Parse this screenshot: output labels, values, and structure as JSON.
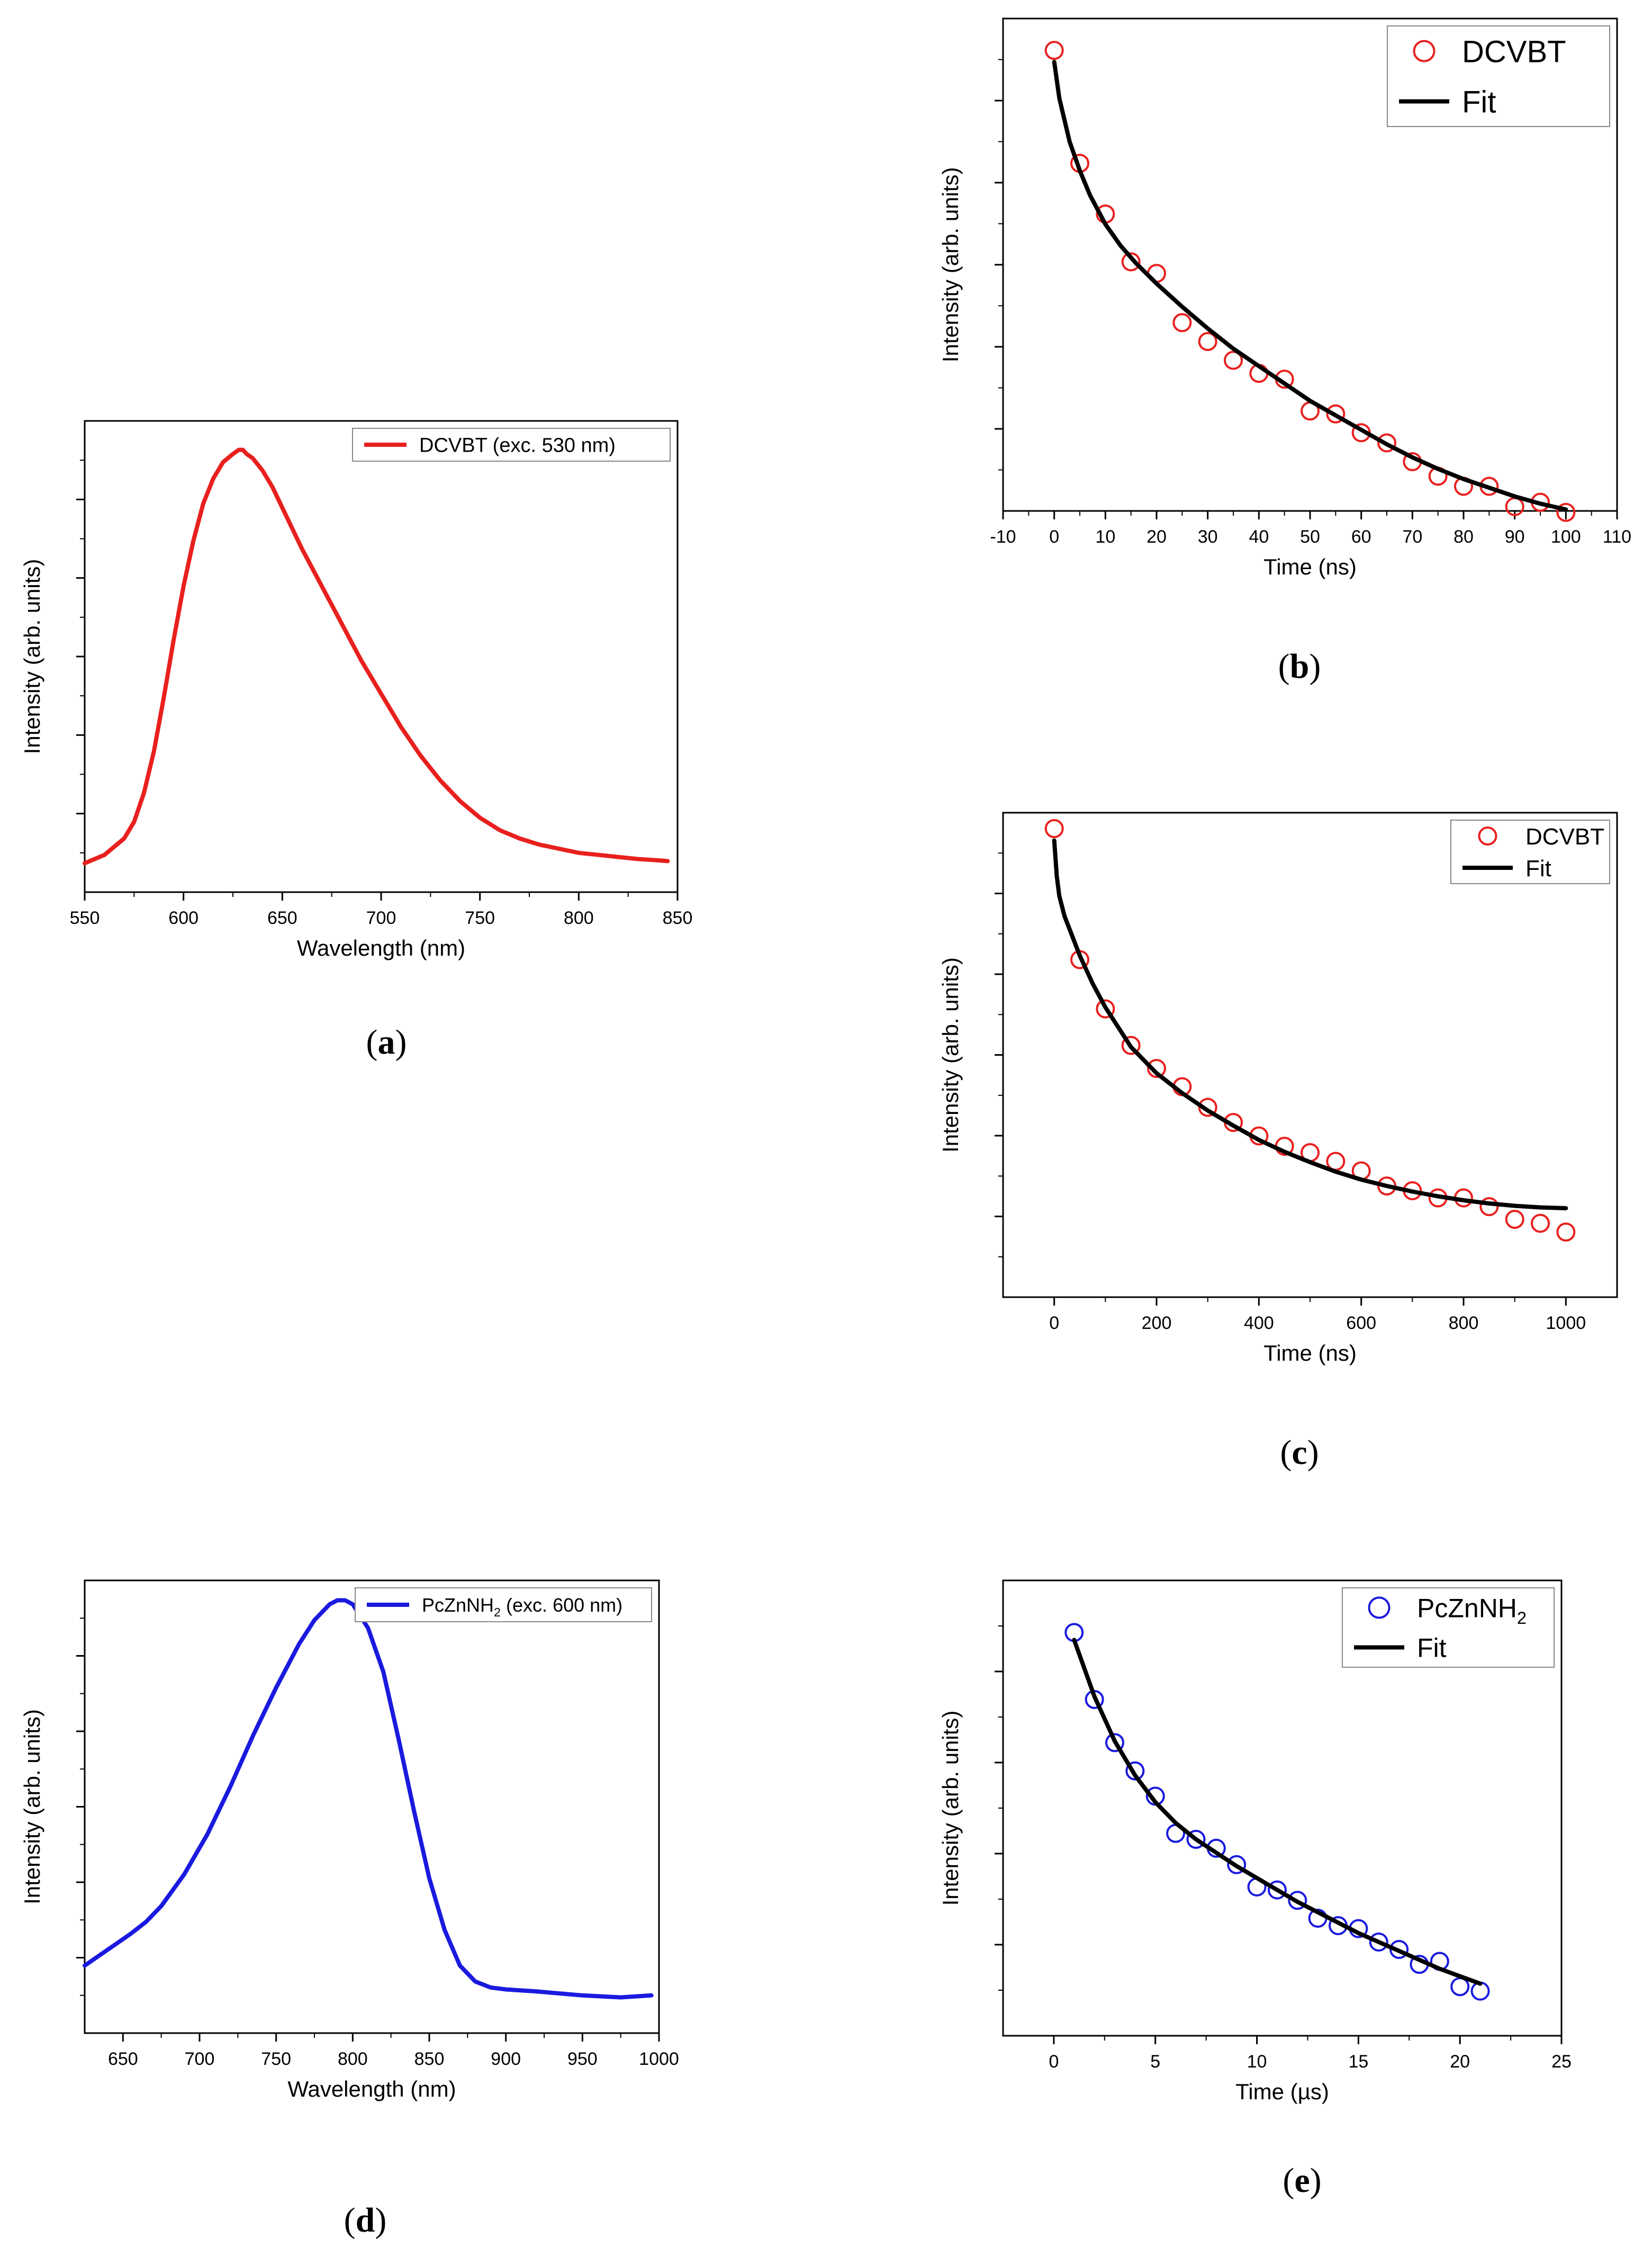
{
  "colors": {
    "red": "#e8201e",
    "blue": "#1a1adf",
    "black": "#000000"
  },
  "chart_data": [
    {
      "id": "a",
      "type": "line",
      "caption_letter": "a",
      "xlabel": "Wavelength (nm)",
      "ylabel": "Intensity (arb. units)",
      "xlim": [
        550,
        850
      ],
      "ylim": [
        -0.07,
        1.07
      ],
      "xticks": [
        550,
        600,
        650,
        700,
        750,
        800,
        850
      ],
      "xtick_labels": [
        "550",
        "600",
        "650",
        "700",
        "750",
        "800",
        "850"
      ],
      "legend": [
        {
          "label": "DCVBT (exc. 530 nm)",
          "kind": "line",
          "color": "#e8201e"
        }
      ],
      "legend_position": "top-right",
      "series": [
        {
          "name": "DCVBT (exc. 530 nm)",
          "style": "line",
          "color": "#e8201e",
          "x": [
            550,
            560,
            570,
            575,
            580,
            585,
            590,
            595,
            600,
            605,
            610,
            615,
            620,
            625,
            628,
            630,
            632,
            635,
            640,
            645,
            650,
            660,
            670,
            680,
            690,
            700,
            710,
            720,
            730,
            740,
            750,
            760,
            770,
            780,
            790,
            800,
            810,
            820,
            830,
            840,
            845
          ],
          "y": [
            0.0,
            0.02,
            0.06,
            0.1,
            0.17,
            0.27,
            0.4,
            0.54,
            0.67,
            0.78,
            0.87,
            0.93,
            0.97,
            0.99,
            1.0,
            1.0,
            0.99,
            0.98,
            0.95,
            0.91,
            0.86,
            0.76,
            0.67,
            0.58,
            0.49,
            0.41,
            0.33,
            0.26,
            0.2,
            0.15,
            0.11,
            0.08,
            0.06,
            0.045,
            0.035,
            0.025,
            0.02,
            0.015,
            0.01,
            0.007,
            0.005
          ]
        }
      ]
    },
    {
      "id": "b",
      "type": "scatter",
      "caption_letter": "b",
      "xlabel": "Time (ns)",
      "ylabel": "Intensity (arb. units)",
      "xlim": [
        -10,
        110
      ],
      "ylim": [
        0.8,
        4.2
      ],
      "xticks": [
        -10,
        0,
        10,
        20,
        30,
        40,
        50,
        60,
        70,
        80,
        90,
        100,
        110
      ],
      "xtick_labels": [
        "-10",
        "0",
        "10",
        "20",
        "30",
        "40",
        "50",
        "60",
        "70",
        "80",
        "90",
        "100",
        "110"
      ],
      "legend": [
        {
          "label": "DCVBT",
          "kind": "marker",
          "color": "#e8201e"
        },
        {
          "label": "Fit",
          "kind": "line",
          "color": "#000000"
        }
      ],
      "legend_position": "top-right",
      "series": [
        {
          "name": "DCVBT",
          "style": "markers",
          "color": "#e8201e",
          "x": [
            0,
            5,
            10,
            15,
            20,
            25,
            30,
            35,
            40,
            45,
            50,
            55,
            60,
            65,
            70,
            75,
            80,
            85,
            90,
            95,
            100
          ],
          "y": [
            3.98,
            3.2,
            2.85,
            2.52,
            2.44,
            2.1,
            1.97,
            1.84,
            1.75,
            1.71,
            1.49,
            1.47,
            1.34,
            1.27,
            1.14,
            1.04,
            0.97,
            0.97,
            0.83,
            0.86,
            0.79
          ]
        },
        {
          "name": "Fit",
          "style": "line",
          "color": "#000000",
          "x": [
            0,
            1,
            3,
            5,
            7,
            10,
            13,
            16,
            20,
            25,
            30,
            35,
            40,
            45,
            50,
            55,
            60,
            65,
            70,
            75,
            80,
            85,
            90,
            95,
            100
          ],
          "y": [
            3.9,
            3.65,
            3.35,
            3.15,
            2.98,
            2.78,
            2.63,
            2.51,
            2.37,
            2.21,
            2.06,
            1.92,
            1.8,
            1.68,
            1.56,
            1.46,
            1.36,
            1.26,
            1.17,
            1.09,
            1.02,
            0.96,
            0.9,
            0.85,
            0.81
          ]
        }
      ]
    },
    {
      "id": "c",
      "type": "scatter",
      "caption_letter": "c",
      "xlabel": "Time (ns)",
      "ylabel": "Intensity (arb. units)",
      "xlim": [
        -100,
        1100
      ],
      "ylim": [
        -0.1,
        6.0
      ],
      "xticks": [
        0,
        200,
        400,
        600,
        800,
        1000
      ],
      "xtick_labels": [
        "0",
        "200",
        "400",
        "600",
        "800",
        "1000"
      ],
      "legend": [
        {
          "label": "DCVBT",
          "kind": "marker",
          "color": "#e8201e"
        },
        {
          "label": "Fit",
          "kind": "line",
          "color": "#000000"
        }
      ],
      "legend_position": "top-right",
      "series": [
        {
          "name": "DCVBT",
          "style": "markers",
          "color": "#e8201e",
          "x": [
            0,
            50,
            100,
            150,
            200,
            250,
            300,
            350,
            400,
            450,
            500,
            550,
            600,
            650,
            700,
            750,
            800,
            850,
            900,
            950,
            1000
          ],
          "y": [
            5.8,
            4.15,
            3.53,
            3.07,
            2.78,
            2.55,
            2.29,
            2.1,
            1.93,
            1.8,
            1.72,
            1.61,
            1.49,
            1.3,
            1.24,
            1.15,
            1.15,
            1.04,
            0.88,
            0.83,
            0.72
          ]
        },
        {
          "name": "Fit",
          "style": "line",
          "color": "#000000",
          "x": [
            0,
            5,
            10,
            20,
            35,
            50,
            75,
            100,
            150,
            200,
            250,
            300,
            350,
            400,
            450,
            500,
            550,
            600,
            650,
            700,
            750,
            800,
            850,
            900,
            950,
            1000
          ],
          "y": [
            5.65,
            5.2,
            4.95,
            4.7,
            4.45,
            4.2,
            3.85,
            3.55,
            3.05,
            2.72,
            2.47,
            2.25,
            2.06,
            1.88,
            1.73,
            1.6,
            1.48,
            1.38,
            1.3,
            1.23,
            1.17,
            1.12,
            1.08,
            1.05,
            1.03,
            1.02
          ]
        }
      ]
    },
    {
      "id": "d",
      "type": "line",
      "caption_letter": "d",
      "xlabel": "Wavelength (nm)",
      "ylabel": "Intensity (arb. units)",
      "xlim": [
        625,
        1000
      ],
      "ylim": [
        -0.09,
        1.05
      ],
      "xticks": [
        650,
        700,
        750,
        800,
        850,
        900,
        950,
        1000
      ],
      "xtick_labels": [
        "650",
        "700",
        "750",
        "800",
        "850",
        "900",
        "950",
        "1000"
      ],
      "legend": [
        {
          "label": "PcZnNH",
          "sub": "2",
          "suffix": " (exc. 600 nm)",
          "kind": "line",
          "color": "#1a1adf"
        }
      ],
      "legend_position": "top-right",
      "series": [
        {
          "name": "PcZnNH2 (exc. 600 nm)",
          "style": "line",
          "color": "#1a1adf",
          "x": [
            625,
            640,
            655,
            665,
            675,
            690,
            705,
            720,
            735,
            750,
            765,
            775,
            785,
            790,
            795,
            800,
            810,
            820,
            830,
            840,
            850,
            860,
            870,
            880,
            890,
            900,
            920,
            950,
            975,
            995
          ],
          "y": [
            0.08,
            0.12,
            0.16,
            0.19,
            0.23,
            0.31,
            0.41,
            0.53,
            0.66,
            0.78,
            0.89,
            0.95,
            0.99,
            1.0,
            1.0,
            0.99,
            0.93,
            0.82,
            0.65,
            0.47,
            0.3,
            0.17,
            0.08,
            0.04,
            0.025,
            0.02,
            0.015,
            0.005,
            0.0,
            0.005
          ]
        }
      ]
    },
    {
      "id": "e",
      "type": "scatter",
      "caption_letter": "e",
      "xlabel": "Time (µs)",
      "ylabel": "Intensity (arb. units)",
      "xlim": [
        -2.5,
        25
      ],
      "ylim": [
        0.66,
        3.72
      ],
      "xticks": [
        0,
        5,
        10,
        15,
        20,
        25
      ],
      "xtick_labels": [
        "0",
        "5",
        "10",
        "15",
        "20",
        "25"
      ],
      "legend": [
        {
          "label": "PcZnNH",
          "sub": "2",
          "suffix": "",
          "kind": "marker",
          "color": "#1a1adf"
        },
        {
          "label": "Fit",
          "kind": "line",
          "color": "#000000"
        }
      ],
      "legend_position": "top-right",
      "series": [
        {
          "name": "PcZnNH2",
          "style": "markers",
          "color": "#1a1adf",
          "x": [
            1,
            2,
            3,
            4,
            5,
            6,
            7,
            8,
            9,
            10,
            11,
            12,
            13,
            14,
            15,
            16,
            17,
            18,
            19,
            20,
            21
          ],
          "y": [
            3.37,
            2.92,
            2.63,
            2.44,
            2.27,
            2.02,
            1.98,
            1.92,
            1.81,
            1.66,
            1.64,
            1.57,
            1.45,
            1.4,
            1.38,
            1.29,
            1.24,
            1.14,
            1.16,
            0.99,
            0.96
          ]
        },
        {
          "name": "Fit",
          "style": "line",
          "color": "#000000",
          "x": [
            1,
            2,
            3,
            4,
            5,
            6,
            7,
            8,
            9,
            10,
            11,
            12,
            13,
            14,
            15,
            16,
            17,
            18,
            19,
            20,
            21
          ],
          "y": [
            3.32,
            2.94,
            2.64,
            2.41,
            2.23,
            2.09,
            1.98,
            1.89,
            1.8,
            1.72,
            1.64,
            1.56,
            1.49,
            1.42,
            1.35,
            1.29,
            1.23,
            1.17,
            1.11,
            1.06,
            1.01
          ]
        }
      ]
    }
  ]
}
